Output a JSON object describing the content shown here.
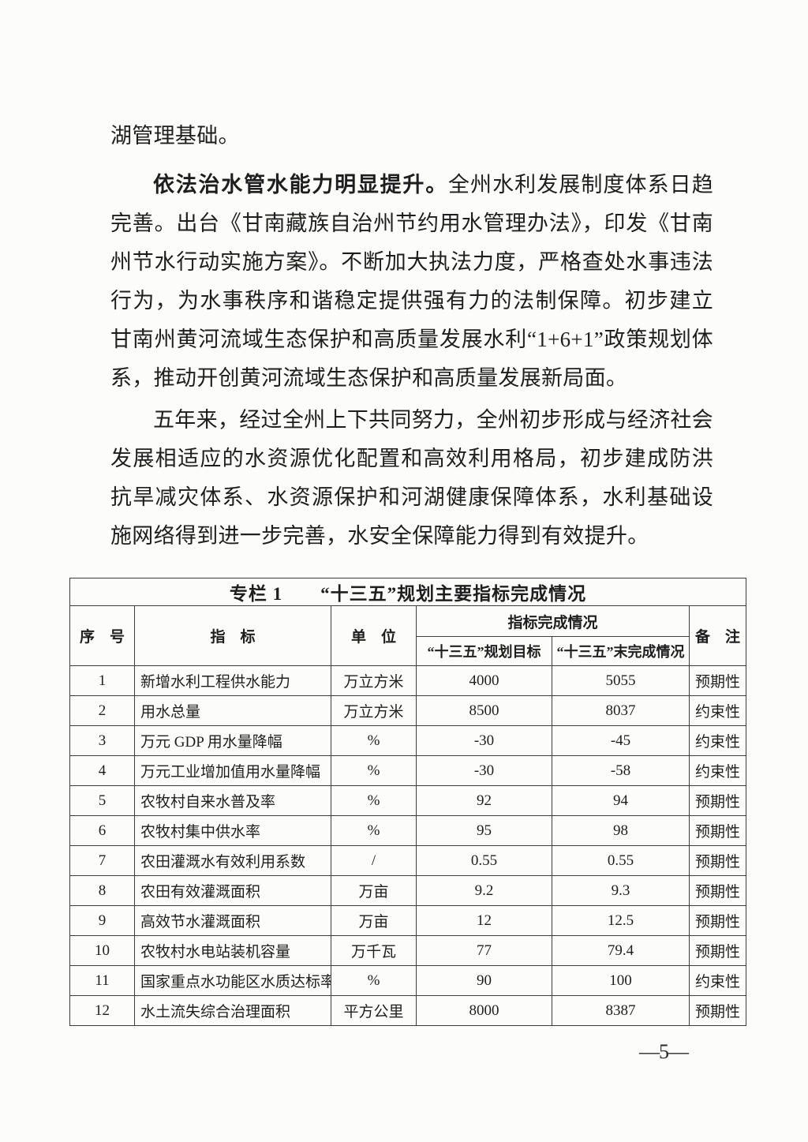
{
  "document": {
    "paragraphs": {
      "p1": {
        "text": "湖管理基础。"
      },
      "p2": {
        "lead": "依法治水管水能力明显提升。",
        "text": "全州水利发展制度体系日趋完善。出台《甘南藏族自治州节约用水管理办法》，印发《甘南州节水行动实施方案》。不断加大执法力度，严格查处水事违法行为，为水事秩序和谐稳定提供强有力的法制保障。初步建立甘南州黄河流域生态保护和高质量发展水利“1+6+1”政策规划体系，推动开创黄河流域生态保护和高质量发展新局面。"
      },
      "p3": {
        "text": "五年来，经过全州上下共同努力，全州初步形成与经济社会发展相适应的水资源优化配置和高效利用格局，初步建成防洪抗旱减灾体系、水资源保护和河湖健康保障体系，水利基础设施网络得到进一步完善，水安全保障能力得到有效提升。"
      }
    },
    "page_number": "—5—"
  },
  "table": {
    "title": "专栏 1　　“十三五”规划主要指标完成情况",
    "headers": {
      "seq": "序　号",
      "indicator": "指　标",
      "unit": "单　位",
      "completion_group": "指标完成情况",
      "plan_target": "“十三五”规划目标",
      "final_completion": "“十三五”末完成情况",
      "remark": "备　注"
    },
    "rows": [
      [
        "1",
        "新增水利工程供水能力",
        "万立方米",
        "4000",
        "5055",
        "预期性"
      ],
      [
        "2",
        "用水总量",
        "万立方米",
        "8500",
        "8037",
        "约束性"
      ],
      [
        "3",
        "万元 GDP 用水量降幅",
        "%",
        "-30",
        "-45",
        "约束性"
      ],
      [
        "4",
        "万元工业增加值用水量降幅",
        "%",
        "-30",
        "-58",
        "约束性"
      ],
      [
        "5",
        "农牧村自来水普及率",
        "%",
        "92",
        "94",
        "预期性"
      ],
      [
        "6",
        "农牧村集中供水率",
        "%",
        "95",
        "98",
        "预期性"
      ],
      [
        "7",
        "农田灌溉水有效利用系数",
        "/",
        "0.55",
        "0.55",
        "预期性"
      ],
      [
        "8",
        "农田有效灌溉面积",
        "万亩",
        "9.2",
        "9.3",
        "预期性"
      ],
      [
        "9",
        "高效节水灌溉面积",
        "万亩",
        "12",
        "12.5",
        "预期性"
      ],
      [
        "10",
        "农牧村水电站装机容量",
        "万千瓦",
        "77",
        "79.4",
        "预期性"
      ],
      [
        "11",
        "国家重点水功能区水质达标率",
        "%",
        "90",
        "100",
        "约束性"
      ],
      [
        "12",
        "水土流失综合治理面积",
        "平方公里",
        "8000",
        "8387",
        "预期性"
      ]
    ]
  }
}
